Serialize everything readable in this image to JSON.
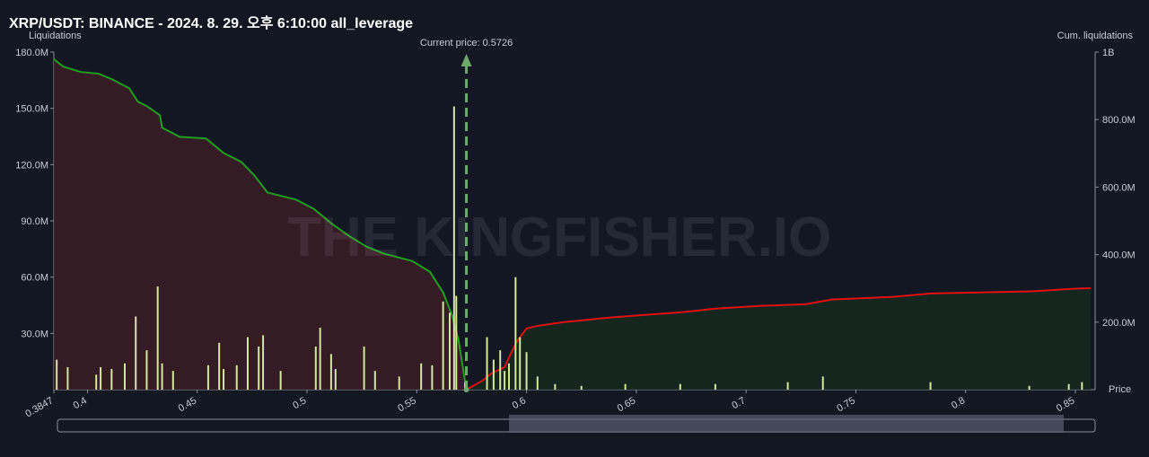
{
  "chart_data": {
    "type": "liquidation-map",
    "title": "XRP/USDT: BINANCE - 2024. 8. 29. 오후 6:10:00 all_leverage",
    "y_label": "Liquidations",
    "y2_label": "Cum. liquidations",
    "x_label": "Price",
    "annotation": "Current price: 0.5726",
    "current_price": 0.5726,
    "watermark": "THE KINGFISHER.IO",
    "xlim": [
      0.3847,
      0.859
    ],
    "xticks": [
      0.3847,
      0.4,
      0.45,
      0.5,
      0.55,
      0.6,
      0.65,
      0.7,
      0.75,
      0.8,
      0.85
    ],
    "ylim": [
      0,
      180000000
    ],
    "yticks": [
      {
        "value": 30000000,
        "label": "30.0M"
      },
      {
        "value": 60000000,
        "label": "60.0M"
      },
      {
        "value": 90000000,
        "label": "90.0M"
      },
      {
        "value": 120000000,
        "label": "120.0M"
      },
      {
        "value": 150000000,
        "label": "150.0M"
      },
      {
        "value": 180000000,
        "label": "180.0M"
      }
    ],
    "y2lim": [
      0,
      1000000000
    ],
    "y2ticks": [
      {
        "value": 200000000,
        "label": "200.0M"
      },
      {
        "value": 400000000,
        "label": "400.0M"
      },
      {
        "value": 600000000,
        "label": "600.0M"
      },
      {
        "value": 800000000,
        "label": "800.0M"
      },
      {
        "value": 1000000000,
        "label": "1B"
      }
    ],
    "series": [
      {
        "type": "bar",
        "color": "#d4e79e",
        "x": [
          0.386,
          0.391,
          0.404,
          0.406,
          0.411,
          0.417,
          0.422,
          0.427,
          0.432,
          0.434,
          0.439,
          0.455,
          0.46,
          0.462,
          0.468,
          0.473,
          0.478,
          0.48,
          0.488,
          0.504,
          0.506,
          0.511,
          0.513,
          0.526,
          0.531,
          0.542,
          0.552,
          0.557,
          0.562,
          0.565,
          0.567,
          0.568,
          0.572,
          0.582,
          0.585,
          0.588,
          0.59,
          0.592,
          0.595,
          0.597,
          0.6,
          0.605,
          0.613,
          0.625,
          0.645,
          0.67,
          0.686,
          0.719,
          0.735,
          0.784,
          0.829,
          0.847,
          0.853
        ],
        "values": [
          16000000,
          12000000,
          8000000,
          12000000,
          11000000,
          14000000,
          39000000,
          21000000,
          55000000,
          14000000,
          10000000,
          13000000,
          25000000,
          11000000,
          13000000,
          28000000,
          23000000,
          29000000,
          10000000,
          23000000,
          33000000,
          19000000,
          11000000,
          23000000,
          10000000,
          7000000,
          14000000,
          13000000,
          47000000,
          41000000,
          151000000,
          50000000,
          4000000,
          28000000,
          16000000,
          21000000,
          10000000,
          14000000,
          60000000,
          28000000,
          20000000,
          7000000,
          3000000,
          2000000,
          3000000,
          3000000,
          3000000,
          4000000,
          7000000,
          4000000,
          2000000,
          3000000,
          4000000
        ]
      },
      {
        "type": "line",
        "axis": "y2",
        "color": "#1f9e1f",
        "fill": "#3b1c24",
        "x": [
          0.3847,
          0.389,
          0.397,
          0.405,
          0.411,
          0.419,
          0.423,
          0.427,
          0.433,
          0.434,
          0.442,
          0.454,
          0.462,
          0.47,
          0.476,
          0.482,
          0.495,
          0.503,
          0.511,
          0.519,
          0.527,
          0.535,
          0.548,
          0.556,
          0.562,
          0.566,
          0.569,
          0.5726
        ],
        "values": [
          979000000,
          957000000,
          941000000,
          936000000,
          920000000,
          893000000,
          853000000,
          840000000,
          813000000,
          776000000,
          749000000,
          744000000,
          701000000,
          675000000,
          635000000,
          584000000,
          563000000,
          536000000,
          493000000,
          456000000,
          424000000,
          403000000,
          381000000,
          349000000,
          288000000,
          221000000,
          147000000,
          0
        ]
      },
      {
        "type": "line",
        "axis": "y2",
        "color": "#e01010",
        "fill": "#16291f",
        "x": [
          0.5726,
          0.58,
          0.584,
          0.59,
          0.593,
          0.596,
          0.6,
          0.605,
          0.617,
          0.637,
          0.653,
          0.67,
          0.686,
          0.706,
          0.727,
          0.739,
          0.767,
          0.784,
          0.829,
          0.849,
          0.857
        ],
        "values": [
          0,
          27000000,
          48000000,
          67000000,
          109000000,
          147000000,
          181000000,
          189000000,
          200000000,
          213000000,
          221000000,
          229000000,
          240000000,
          248000000,
          253000000,
          267000000,
          275000000,
          285000000,
          291000000,
          299000000,
          301000000
        ]
      }
    ]
  }
}
